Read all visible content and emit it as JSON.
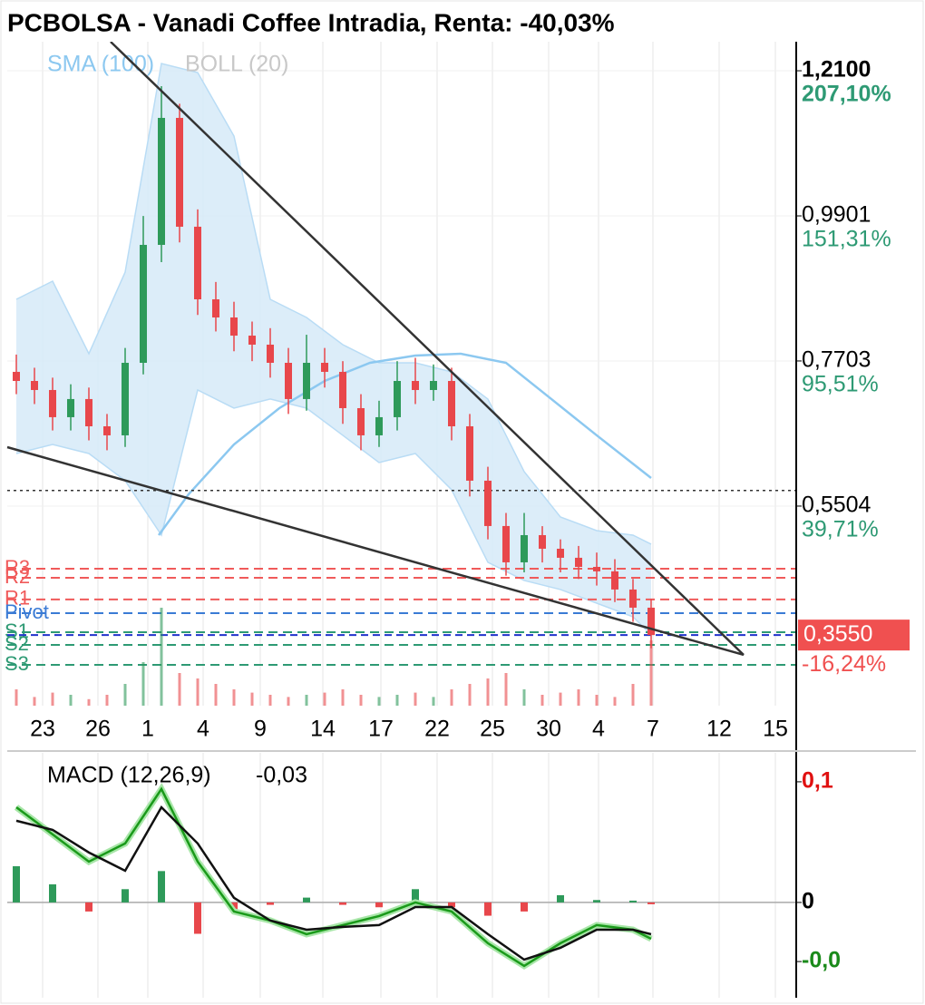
{
  "chart_data": [
    {
      "type": "candlestick",
      "title": "PCBOLSA - Vanadi Coffee Intradia, Renta: -40,03%",
      "x": [
        1,
        3,
        5,
        7,
        9,
        11,
        13,
        15,
        17,
        19,
        21,
        23,
        25,
        27,
        29,
        31,
        33,
        35,
        37,
        39,
        41,
        43,
        45,
        47,
        49,
        51,
        53,
        55,
        57,
        59,
        61,
        63,
        65,
        67,
        69,
        71
      ],
      "open": [
        0.7538,
        0.74,
        0.7263,
        0.6851,
        0.7126,
        0.6713,
        0.6576,
        0.7675,
        0.9462,
        1.1386,
        0.9737,
        0.8637,
        0.8362,
        0.8087,
        0.795,
        0.7675,
        0.7126,
        0.7675,
        0.7538,
        0.6988,
        0.6576,
        0.6851,
        0.74,
        0.7263,
        0.74,
        0.6713,
        0.5889,
        0.5202,
        0.4652,
        0.5064,
        0.4858,
        0.4721,
        0.4583,
        0.4515,
        0.424,
        0.3965
      ],
      "high": [
        0.78,
        0.76,
        0.745,
        0.735,
        0.73,
        0.69,
        0.79,
        0.99,
        1.1866,
        1.16,
        1.0,
        0.89,
        0.86,
        0.83,
        0.82,
        0.79,
        0.81,
        0.79,
        0.77,
        0.72,
        0.71,
        0.77,
        0.775,
        0.765,
        0.76,
        0.69,
        0.61,
        0.54,
        0.54,
        0.52,
        0.5,
        0.49,
        0.48,
        0.47,
        0.44,
        0.41
      ],
      "low": [
        0.72,
        0.705,
        0.665,
        0.665,
        0.65,
        0.635,
        0.64,
        0.75,
        0.92,
        0.95,
        0.84,
        0.815,
        0.785,
        0.77,
        0.745,
        0.69,
        0.695,
        0.73,
        0.675,
        0.635,
        0.64,
        0.665,
        0.705,
        0.71,
        0.65,
        0.565,
        0.5,
        0.445,
        0.45,
        0.465,
        0.45,
        0.44,
        0.43,
        0.405,
        0.375,
        0.335
      ],
      "close": [
        0.74,
        0.7263,
        0.6851,
        0.7126,
        0.6713,
        0.6576,
        0.7675,
        0.9462,
        1.1386,
        0.9737,
        0.8637,
        0.8362,
        0.8087,
        0.795,
        0.7675,
        0.7126,
        0.7675,
        0.7538,
        0.6988,
        0.6576,
        0.6851,
        0.74,
        0.7263,
        0.74,
        0.6713,
        0.5889,
        0.5202,
        0.4652,
        0.5064,
        0.4858,
        0.4721,
        0.4583,
        0.4515,
        0.424,
        0.3965,
        0.355
      ],
      "volume": [
        15,
        8,
        12,
        10,
        6,
        10,
        20,
        40,
        90,
        30,
        25,
        20,
        15,
        12,
        10,
        8,
        10,
        12,
        15,
        10,
        8,
        10,
        12,
        8,
        15,
        20,
        25,
        30,
        15,
        10,
        12,
        15,
        10,
        8,
        20,
        60
      ],
      "volume_lim": [
        0,
        100
      ],
      "up_color": "#2e9a5a",
      "down_color": "#e8474b",
      "sma": {
        "name": "SMA (100)",
        "color": "#8cc8f0",
        "x": [
          16.7,
          20,
          25,
          30,
          35,
          40,
          45,
          50,
          55,
          60,
          65,
          71
        ],
        "values": [
          0.5064,
          0.5683,
          0.6438,
          0.6988,
          0.74,
          0.7675,
          0.7785,
          0.7813,
          0.7675,
          0.7126,
          0.6576,
          0.593
        ]
      },
      "bollinger": {
        "name": "BOLL (20)",
        "color": "#c8c8c8",
        "band_color": "#d6eaf8",
        "x": [
          1,
          5,
          9,
          13,
          17,
          21,
          25,
          29,
          33,
          37,
          41,
          45,
          49,
          53,
          57,
          61,
          65,
          69,
          71
        ],
        "upper": [
          0.8637,
          0.8912,
          0.7813,
          0.9049,
          1.221,
          1.2073,
          1.1111,
          0.8637,
          0.8362,
          0.795,
          0.7675,
          0.7675,
          0.7538,
          0.7126,
          0.6026,
          0.5339,
          0.5133,
          0.5064,
          0.4927
        ],
        "lower": [
          0.6301,
          0.6438,
          0.6301,
          0.5889,
          0.5064,
          0.7263,
          0.6988,
          0.7126,
          0.6988,
          0.6576,
          0.6164,
          0.6301,
          0.5751,
          0.4652,
          0.4377,
          0.424,
          0.4033,
          0.3827,
          0.3553
        ]
      },
      "trendlines": [
        {
          "x": [
            11.4,
            81.2
          ],
          "y": [
            1.254,
            0.325
          ]
        },
        {
          "x": [
            0,
            81.2
          ],
          "y": [
            0.6397,
            0.325
          ]
        }
      ],
      "reference_line": 0.574,
      "pivots": [
        {
          "name": "R3",
          "value": 0.4556,
          "color": "#f05a5a"
        },
        {
          "name": "R2",
          "value": 0.4418,
          "color": "#f05a5a"
        },
        {
          "name": "R1",
          "value": 0.4089,
          "color": "#f05a5a"
        },
        {
          "name": "Pivot",
          "value": 0.3882,
          "color": "#3a7bd5"
        },
        {
          "name": "S1",
          "value": 0.3594,
          "color": "#2e9a74"
        },
        {
          "name": "S2",
          "value": 0.34,
          "color": "#2e9a74"
        },
        {
          "name": "S3",
          "value": 0.3099,
          "color": "#2e9a74"
        }
      ],
      "last_price": {
        "value": 0.355,
        "label": "0,3550",
        "change": -16.24,
        "change_label": "-16,24%",
        "color": "#f05050",
        "line_color": "#2233cc"
      },
      "xlim": [
        0,
        87
      ],
      "xticks": [
        {
          "value": 3.9,
          "label": "23"
        },
        {
          "value": 10,
          "label": "26"
        },
        {
          "value": 15.5,
          "label": "1"
        },
        {
          "value": 21.6,
          "label": "4"
        },
        {
          "value": 27.9,
          "label": "9"
        },
        {
          "value": 34.8,
          "label": "14"
        },
        {
          "value": 41.2,
          "label": "17"
        },
        {
          "value": 47.4,
          "label": "22"
        },
        {
          "value": 53.5,
          "label": "25"
        },
        {
          "value": 59.7,
          "label": "30"
        },
        {
          "value": 65.2,
          "label": "4"
        },
        {
          "value": 71.2,
          "label": "7"
        },
        {
          "value": 78.5,
          "label": "12"
        },
        {
          "value": 84.7,
          "label": "15"
        }
      ],
      "ylim": [
        0.248,
        1.254
      ],
      "yticks": [
        {
          "value": 1.21,
          "label": "1,2100"
        },
        {
          "value": 0.9901,
          "label": "0,9901"
        },
        {
          "value": 0.7703,
          "label": "0,7703"
        },
        {
          "value": 0.5504,
          "label": "0,5504"
        }
      ],
      "y2lim": [
        -37.02,
        218.25
      ],
      "y2ticks": [
        {
          "value": 207.1,
          "label": "207,10%"
        },
        {
          "value": 151.31,
          "label": "151,31%"
        },
        {
          "value": 95.51,
          "label": "95,51%"
        },
        {
          "value": 39.71,
          "label": "39,71%"
        }
      ],
      "y2_color": "#2e9a74",
      "grid": true
    },
    {
      "type": "line",
      "title": "MACD (12,26,9)",
      "current": {
        "value": -0.03,
        "label": "-0,03"
      },
      "x": [
        1,
        5,
        9,
        13,
        17,
        21,
        25,
        29,
        33,
        37,
        41,
        45,
        49,
        53,
        57,
        61,
        65,
        69,
        71
      ],
      "series": [
        {
          "color": "#1a9a1a",
          "values": [
            0.0789,
            0.0564,
            0.0338,
            0.0489,
            0.094,
            0.0338,
            -0.0075,
            -0.015,
            -0.0263,
            -0.0188,
            -0.0113,
            0,
            -0.0075,
            -0.0338,
            -0.0526,
            -0.0338,
            -0.0188,
            -0.0226,
            -0.0301
          ]
        },
        {
          "color": "#111111",
          "values": [
            0.0677,
            0.0602,
            0.0414,
            0.0263,
            0.0789,
            0.0489,
            0.0038,
            -0.015,
            -0.0226,
            -0.0203,
            -0.0188,
            -0.0038,
            -0.0038,
            -0.0263,
            -0.0474,
            -0.0376,
            -0.0226,
            -0.0226,
            -0.0263
          ]
        }
      ],
      "histogram": [
        0.03,
        0.015,
        -0.0075,
        0.011,
        0.026,
        -0.026,
        -0.0075,
        -0.002,
        0.004,
        -0.002,
        -0.004,
        0.011,
        -0.004,
        -0.011,
        -0.0075,
        0.006,
        0.002,
        0.0015,
        -0.0015
      ],
      "ylim": [
        -0.079,
        0.124
      ],
      "yticks": [
        {
          "value": 0.1,
          "label": "0,1"
        },
        0,
        {
          "value": -0.049,
          "label": "-0,0"
        }
      ],
      "ytick_colors": [
        "#e01010",
        "#000000",
        "#1a8a1a"
      ]
    }
  ]
}
